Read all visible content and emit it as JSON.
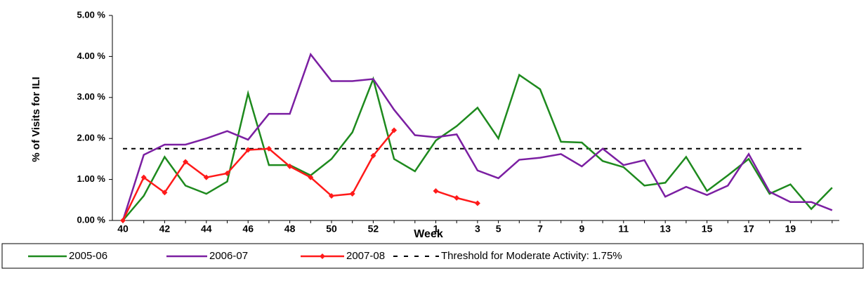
{
  "chart_data": {
    "type": "line",
    "y_label": "% of Visits for ILI",
    "x_label": "Week",
    "categories": [
      "40",
      null,
      "42",
      null,
      "44",
      null,
      "46",
      null,
      "48",
      null,
      "50",
      null,
      "52",
      null,
      null,
      "1",
      null,
      "3",
      "5",
      null,
      "7",
      null,
      "9",
      null,
      "11",
      null,
      "13",
      null,
      "15",
      null,
      "17",
      null,
      "19",
      null,
      null
    ],
    "ylim": [
      0,
      5
    ],
    "yticks": [
      {
        "value": 0,
        "label": "0.00 %"
      },
      {
        "value": 1,
        "label": "1.00 %"
      },
      {
        "value": 2,
        "label": "2.00 %"
      },
      {
        "value": 3,
        "label": "3.00 %"
      },
      {
        "value": 4,
        "label": "4.00 %"
      },
      {
        "value": 5,
        "label": "5.00 %"
      }
    ],
    "series": [
      {
        "name": "2005-06",
        "color": "#1e8a1e",
        "values": [
          0,
          0.6,
          1.55,
          0.85,
          0.65,
          0.95,
          3.1,
          1.35,
          1.35,
          1.1,
          1.5,
          2.15,
          3.45,
          1.5,
          1.2,
          1.95,
          2.3,
          2.75,
          2.0,
          3.55,
          3.2,
          1.92,
          1.9,
          1.45,
          1.3,
          0.85,
          0.92,
          1.55,
          0.72,
          1.1,
          1.5,
          0.65,
          0.88,
          0.28,
          0.8
        ]
      },
      {
        "name": "2006-07",
        "color": "#7b1fa2",
        "values": [
          0,
          1.6,
          1.85,
          1.85,
          2.0,
          2.18,
          1.97,
          2.6,
          2.6,
          4.05,
          3.4,
          3.4,
          3.45,
          2.7,
          2.08,
          2.03,
          2.1,
          1.22,
          1.03,
          1.48,
          1.53,
          1.62,
          1.32,
          1.75,
          1.35,
          1.47,
          0.58,
          0.82,
          0.62,
          0.85,
          1.62,
          0.7,
          0.45,
          0.45,
          0.25
        ]
      },
      {
        "name": "2007-08",
        "color": "#ff1a1a",
        "marker": true,
        "values": [
          0,
          1.05,
          0.68,
          1.43,
          1.05,
          1.15,
          1.72,
          1.75,
          1.32,
          1.05,
          0.6,
          0.65,
          1.58,
          2.2,
          null,
          0.72,
          0.55,
          0.42,
          null,
          null,
          null,
          null,
          null,
          null,
          null,
          null,
          null,
          null,
          null,
          null,
          null,
          null,
          null,
          null,
          null
        ]
      }
    ],
    "threshold": {
      "name": "Threshold for Moderate Activity: 1.75%",
      "value": 1.75,
      "color": "#000000"
    }
  }
}
